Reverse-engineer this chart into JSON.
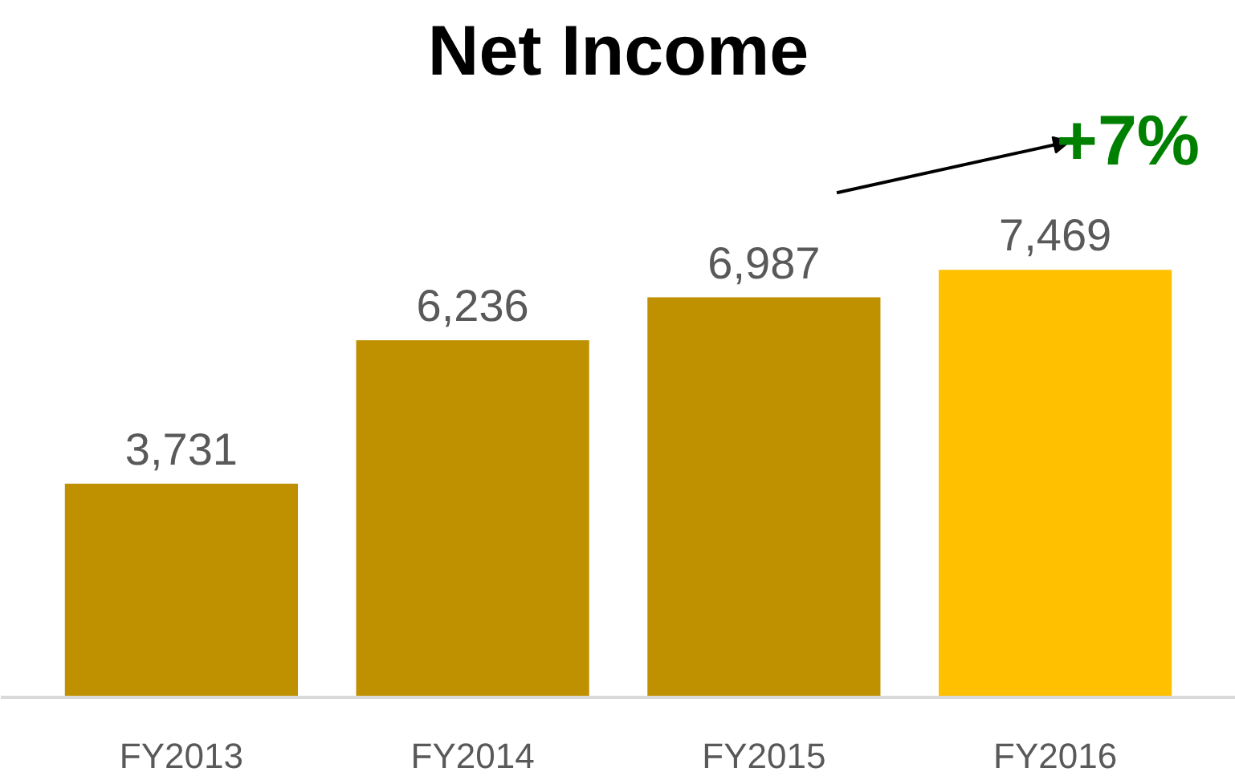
{
  "chart_data": {
    "type": "bar",
    "title": "Net Income",
    "categories": [
      "FY2013",
      "FY2014",
      "FY2015",
      "FY2016"
    ],
    "values": [
      3731,
      6236,
      6987,
      7469
    ],
    "value_labels": [
      "3,731",
      "6,236",
      "6,987",
      "7,469"
    ],
    "colors": [
      "#bf9000",
      "#bf9000",
      "#bf9000",
      "#ffc000"
    ],
    "annotations": [
      "+7%"
    ]
  }
}
